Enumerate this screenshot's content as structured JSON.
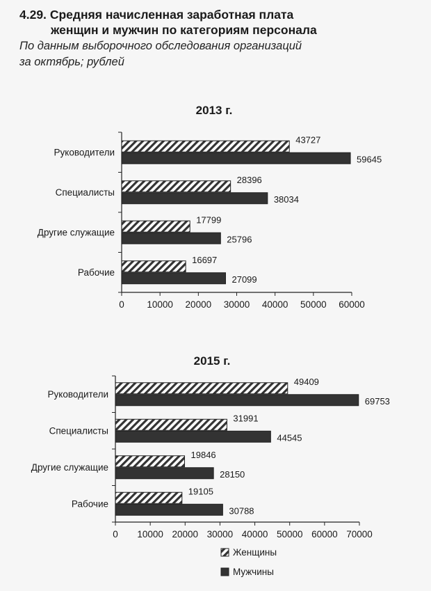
{
  "header": {
    "number": "4.29.",
    "title_line1": "Средняя начисленная заработная плата",
    "title_line2": "женщин и мужчин по категориям персонала",
    "subtitle_line1": "По данным выборочного обследования организаций",
    "subtitle_line2": "за октябрь; рублей"
  },
  "colors": {
    "men": "#333333",
    "women_stripe": "#333333",
    "women_bg": "#ffffff"
  },
  "legend": {
    "women": "Женщины",
    "men": "Мужчины"
  },
  "chart_data": [
    {
      "type": "bar",
      "orientation": "horizontal",
      "title": "2013 г.",
      "categories": [
        "Руководители",
        "Специалисты",
        "Другие служащие",
        "Рабочие"
      ],
      "series": [
        {
          "name": "Женщины",
          "values": [
            43727,
            28396,
            17799,
            16697
          ]
        },
        {
          "name": "Мужчины",
          "values": [
            59645,
            38034,
            25796,
            27099
          ]
        }
      ],
      "xlim": [
        0,
        60000
      ],
      "ticks": [
        "0",
        "10000",
        "20000",
        "30000",
        "40000",
        "50000",
        "60000"
      ]
    },
    {
      "type": "bar",
      "orientation": "horizontal",
      "title": "2015 г.",
      "categories": [
        "Руководители",
        "Специалисты",
        "Другие служащие",
        "Рабочие"
      ],
      "series": [
        {
          "name": "Женщины",
          "values": [
            49409,
            31991,
            19846,
            19105
          ]
        },
        {
          "name": "Мужчины",
          "values": [
            69753,
            44545,
            28150,
            30788
          ]
        }
      ],
      "xlim": [
        0,
        70000
      ],
      "ticks": [
        "0",
        "10000",
        "20000",
        "30000",
        "40000",
        "50000",
        "60000",
        "70000"
      ]
    }
  ]
}
